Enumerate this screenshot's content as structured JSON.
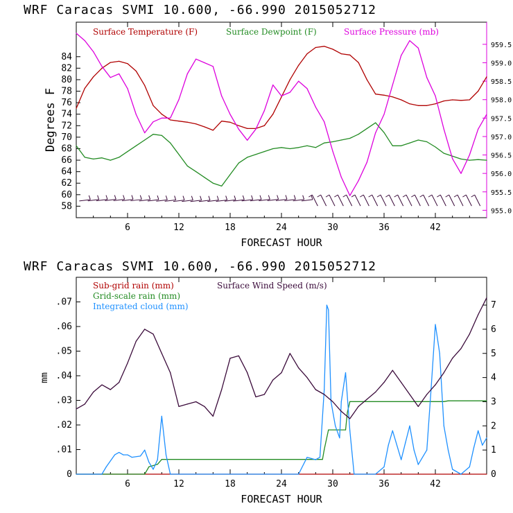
{
  "chart_data": [
    {
      "type": "line",
      "title": "WRF   Caracas SVMI  10.600, -66.990  2015052712",
      "xlabel": "FORECAST HOUR",
      "ylabel": "Degrees F",
      "xlim": [
        0,
        48
      ],
      "ylim": [
        56,
        90
      ],
      "y2lim": [
        954.8,
        960.1
      ],
      "x_ticks": [
        6,
        12,
        18,
        24,
        30,
        36,
        42
      ],
      "x_tick_labels": [
        "6",
        "12",
        "18",
        "24",
        "30",
        "36",
        "42"
      ],
      "y_ticks": [
        58,
        60,
        62,
        64,
        66,
        68,
        70,
        72,
        74,
        76,
        78,
        80,
        82,
        84
      ],
      "y_tick_labels": [
        "58",
        "60",
        "62",
        "64",
        "66",
        "68",
        "70",
        "72",
        "74",
        "76",
        "78",
        "80",
        "82",
        "84"
      ],
      "y2_ticks": [
        955.0,
        955.5,
        956.0,
        956.5,
        957.0,
        957.5,
        958.0,
        958.5,
        959.0,
        959.5
      ],
      "y2_tick_labels": [
        "955.0",
        "955.5",
        "956.0",
        "956.5",
        "957.0",
        "957.5",
        "958.0",
        "958.5",
        "959.0",
        "959.5"
      ],
      "series": [
        {
          "name": "Surface Temperature (F)",
          "axis": "left",
          "color": "#b00000",
          "x": [
            0,
            1,
            2,
            3,
            4,
            5,
            6,
            7,
            8,
            9,
            10,
            11,
            12,
            13,
            14,
            15,
            16,
            17,
            18,
            19,
            20,
            21,
            22,
            23,
            24,
            25,
            26,
            27,
            28,
            29,
            30,
            31,
            32,
            33,
            34,
            35,
            36,
            37,
            38,
            39,
            40,
            41,
            42,
            43,
            44,
            45,
            46,
            47,
            48
          ],
          "y": [
            75,
            78.5,
            80.5,
            82,
            83,
            83.2,
            82.8,
            81.5,
            79,
            75.5,
            74,
            73,
            72.8,
            72.6,
            72.3,
            71.8,
            71.2,
            72.8,
            72.6,
            72,
            71.5,
            71.5,
            72,
            74,
            77,
            80,
            82.5,
            84.5,
            85.6,
            85.8,
            85.3,
            84.5,
            84.3,
            83,
            80,
            77.5,
            77.3,
            77,
            76.5,
            75.8,
            75.5,
            75.5,
            75.8,
            76.3,
            76.5,
            76.4,
            76.5,
            78,
            80.5
          ]
        },
        {
          "name": "Surface Dewpoint (F)",
          "axis": "left",
          "color": "#228b22",
          "x": [
            0,
            1,
            2,
            3,
            4,
            5,
            6,
            7,
            8,
            9,
            10,
            11,
            12,
            13,
            14,
            15,
            16,
            17,
            18,
            19,
            20,
            21,
            22,
            23,
            24,
            25,
            26,
            27,
            28,
            29,
            30,
            31,
            32,
            33,
            34,
            35,
            36,
            37,
            38,
            39,
            40,
            41,
            42,
            43,
            44,
            45,
            46,
            47,
            48
          ],
          "y": [
            68.5,
            66.5,
            66.2,
            66.4,
            66,
            66.5,
            67.5,
            68.5,
            69.5,
            70.5,
            70.3,
            69,
            67,
            65,
            64,
            63,
            62,
            61.5,
            63.5,
            65.5,
            66.5,
            67,
            67.5,
            68,
            68.2,
            68,
            68.2,
            68.5,
            68.2,
            69,
            69.2,
            69.5,
            69.8,
            70.5,
            71.5,
            72.5,
            70.8,
            68.5,
            68.5,
            69,
            69.5,
            69.2,
            68.3,
            67.2,
            66.7,
            66.2,
            66,
            66.1,
            66
          ]
        },
        {
          "name": "Surface Pressure (mb)",
          "axis": "right",
          "color": "#dd00dd",
          "x": [
            0,
            1,
            2,
            3,
            4,
            5,
            6,
            7,
            8,
            9,
            10,
            11,
            12,
            13,
            14,
            15,
            16,
            17,
            18,
            19,
            20,
            21,
            22,
            23,
            24,
            25,
            26,
            27,
            28,
            29,
            30,
            31,
            32,
            33,
            34,
            35,
            36,
            37,
            38,
            39,
            40,
            41,
            42,
            43,
            44,
            45,
            46,
            47,
            48
          ],
          "y": [
            959.8,
            959.6,
            959.3,
            958.9,
            958.6,
            958.7,
            958.3,
            957.6,
            957.1,
            957.4,
            957.5,
            957.5,
            958.0,
            958.7,
            959.1,
            959.0,
            958.9,
            958.1,
            957.6,
            957.2,
            956.9,
            957.2,
            957.7,
            958.4,
            958.1,
            958.2,
            958.5,
            958.3,
            957.8,
            957.4,
            956.6,
            955.9,
            955.4,
            955.8,
            956.3,
            957.1,
            957.6,
            958.4,
            959.2,
            959.6,
            959.4,
            958.6,
            958.1,
            957.2,
            956.4,
            956.0,
            956.5,
            957.2,
            957.6
          ]
        }
      ],
      "wind_barbs": {
        "note": "surface wind barbs along 58-59 F line",
        "color": "#3a0a3a"
      }
    },
    {
      "type": "line",
      "title": "WRF   Caracas SVMI  10.600, -66.990  2015052712",
      "xlabel": "FORECAST HOUR",
      "ylabel": "mm",
      "xlim": [
        0,
        48
      ],
      "ylim": [
        0,
        0.08
      ],
      "y2lim": [
        0,
        8.15
      ],
      "x_ticks": [
        6,
        12,
        18,
        24,
        30,
        36,
        42
      ],
      "x_tick_labels": [
        "6",
        "12",
        "18",
        "24",
        "30",
        "36",
        "42"
      ],
      "y_ticks": [
        0,
        0.01,
        0.02,
        0.03,
        0.04,
        0.05,
        0.06,
        0.07
      ],
      "y_tick_labels": [
        "0",
        ".01",
        ".02",
        ".03",
        ".04",
        ".05",
        ".06",
        ".07"
      ],
      "y2_ticks": [
        0,
        1,
        2,
        3,
        4,
        5,
        6,
        7
      ],
      "y2_tick_labels": [
        "0",
        "1",
        "2",
        "3",
        "4",
        "5",
        "6",
        "7"
      ],
      "series": [
        {
          "name": "Sub-grid rain (mm)",
          "axis": "left",
          "color": "#b00000",
          "x": [
            0,
            48
          ],
          "y": [
            0,
            0
          ]
        },
        {
          "name": "Grid-scale rain (mm)",
          "axis": "left",
          "color": "#228b22",
          "x": [
            0,
            6,
            8,
            8.5,
            9.5,
            10,
            28.8,
            29,
            29.5,
            31.5,
            31.7,
            32,
            43,
            43.5,
            48
          ],
          "y": [
            0,
            0,
            0,
            0.003,
            0.004,
            0.006,
            0.006,
            0.01,
            0.018,
            0.018,
            0.025,
            0.0295,
            0.0295,
            0.0298,
            0.0298
          ]
        },
        {
          "name": "Integrated cloud (mm)",
          "axis": "right",
          "color": "#1e90ff",
          "x": [
            0,
            3,
            3.5,
            4.5,
            5,
            5.5,
            6,
            6.5,
            7.5,
            8,
            8.5,
            9,
            9.5,
            10,
            10.5,
            11,
            26,
            27,
            28,
            28.5,
            29,
            29.3,
            29.5,
            29.8,
            30.3,
            30.8,
            31,
            31.5,
            32,
            32.5,
            35,
            36,
            36.5,
            37,
            38,
            38.5,
            39,
            39.5,
            40,
            41,
            41.5,
            42,
            42.5,
            43,
            43.5,
            44,
            45,
            46,
            46.5,
            47,
            47.5,
            48
          ],
          "y": [
            0,
            0,
            0.3,
            0.8,
            0.9,
            0.8,
            0.8,
            0.7,
            0.75,
            1.0,
            0.5,
            0.2,
            0.6,
            2.4,
            0.8,
            0,
            0,
            0.7,
            0.6,
            0.7,
            3.5,
            7.0,
            6.8,
            3.0,
            2.0,
            1.5,
            3.0,
            4.2,
            1.8,
            0,
            0,
            0.3,
            1.2,
            1.8,
            0.6,
            1.3,
            2.0,
            1.0,
            0.4,
            1.0,
            3.5,
            6.2,
            5.0,
            2.0,
            1.0,
            0.2,
            0,
            0.3,
            1.1,
            1.8,
            1.2,
            1.5
          ]
        },
        {
          "name": "Surface Wind Speed (m/s)",
          "axis": "right",
          "color": "#3a0a3a",
          "x": [
            0,
            1,
            2,
            3,
            4,
            5,
            6,
            7,
            8,
            9,
            10,
            11,
            12,
            13,
            14,
            15,
            16,
            17,
            18,
            19,
            20,
            21,
            22,
            23,
            24,
            25,
            26,
            27,
            28,
            29,
            30,
            31,
            32,
            33,
            34,
            35,
            36,
            37,
            38,
            39,
            40,
            41,
            42,
            43,
            44,
            45,
            46,
            47,
            48
          ],
          "y": [
            2.7,
            2.9,
            3.4,
            3.7,
            3.5,
            3.8,
            4.6,
            5.5,
            6.0,
            5.8,
            5.0,
            4.2,
            2.8,
            2.9,
            3.0,
            2.8,
            2.4,
            3.5,
            4.8,
            4.9,
            4.2,
            3.2,
            3.3,
            3.9,
            4.2,
            5.0,
            4.4,
            4.0,
            3.5,
            3.3,
            3.0,
            2.6,
            2.3,
            2.8,
            3.1,
            3.4,
            3.8,
            4.3,
            3.8,
            3.3,
            2.8,
            3.3,
            3.7,
            4.2,
            4.8,
            5.2,
            5.8,
            6.6,
            7.3
          ]
        }
      ]
    }
  ]
}
